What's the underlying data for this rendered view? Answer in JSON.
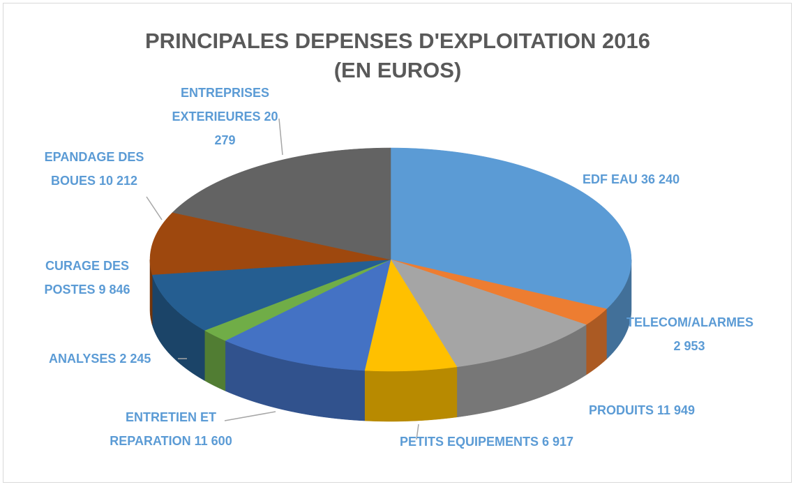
{
  "chart_data": {
    "type": "pie3d",
    "title": "PRINCIPALES DEPENSES D'EXPLOITATION 2016 (EN EUROS)",
    "categories": [
      "EDF EAU",
      "TELECOM/ALARMES",
      "PRODUITS",
      "PETITS EQUIPEMENTS",
      "ENTRETIEN ET REPARATION",
      "ANALYSES",
      "CURAGE DES POSTES",
      "EPANDAGE DES BOUES",
      "ENTREPRISES EXTERIEURES"
    ],
    "values": [
      36240,
      2953,
      11949,
      6917,
      11600,
      2245,
      9846,
      10212,
      20279
    ],
    "value_labels": [
      "36 240",
      "2 953",
      "11 949",
      "6 917",
      "11 600",
      "2 245",
      "9 846",
      "10 212",
      "20 279"
    ],
    "colors": [
      "#5b9bd5",
      "#ed7d31",
      "#a5a5a5",
      "#ffc000",
      "#4472c4",
      "#70ad47",
      "#255e91",
      "#9e480e",
      "#636363"
    ]
  }
}
